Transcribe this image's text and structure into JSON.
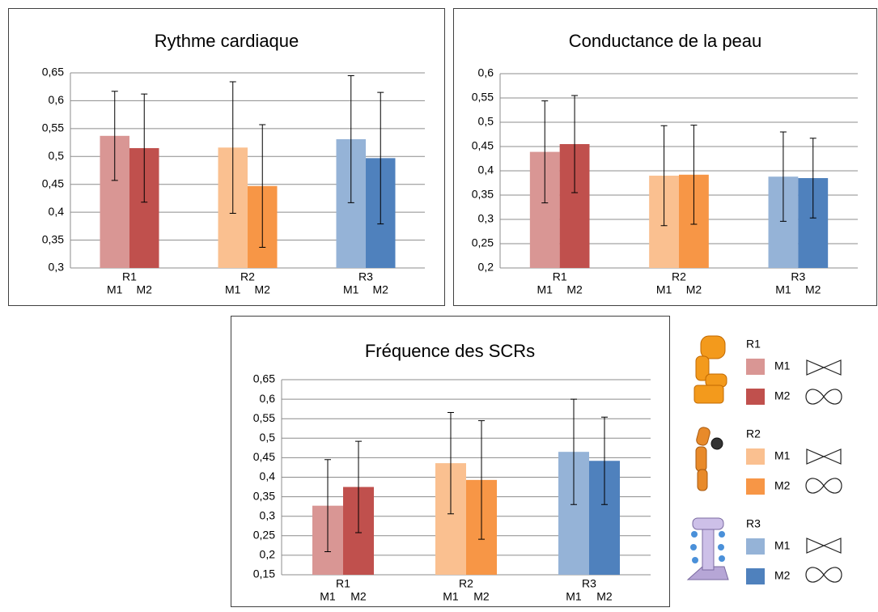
{
  "chart_data": [
    {
      "type": "bar",
      "title": "Rythme cardiaque",
      "categories": [
        "R1",
        "R2",
        "R3"
      ],
      "series": [
        {
          "name": "M1",
          "colors": [
            "#d99694",
            "#fac090",
            "#95b3d7"
          ],
          "values": [
            0.537,
            0.516,
            0.531
          ],
          "errors": [
            0.08,
            0.118,
            0.114
          ]
        },
        {
          "name": "M2",
          "colors": [
            "#c0504d",
            "#f79646",
            "#4f81bd"
          ],
          "values": [
            0.515,
            0.447,
            0.497
          ],
          "errors": [
            0.097,
            0.11,
            0.118
          ]
        }
      ],
      "ylim": [
        0.3,
        0.65
      ],
      "yticks": [
        {
          "value": 0.3,
          "label": "0,3"
        },
        {
          "value": 0.35,
          "label": "0,35"
        },
        {
          "value": 0.4,
          "label": "0,4"
        },
        {
          "value": 0.45,
          "label": "0,45"
        },
        {
          "value": 0.5,
          "label": "0,5"
        },
        {
          "value": 0.55,
          "label": "0,55"
        },
        {
          "value": 0.6,
          "label": "0,6"
        },
        {
          "value": 0.65,
          "label": "0,65"
        }
      ],
      "grid": true
    },
    {
      "type": "bar",
      "title": "Conductance de la peau",
      "categories": [
        "R1",
        "R2",
        "R3"
      ],
      "series": [
        {
          "name": "M1",
          "colors": [
            "#d99694",
            "#fac090",
            "#95b3d7"
          ],
          "values": [
            0.439,
            0.39,
            0.388
          ],
          "errors": [
            0.105,
            0.103,
            0.092
          ]
        },
        {
          "name": "M2",
          "colors": [
            "#c0504d",
            "#f79646",
            "#4f81bd"
          ],
          "values": [
            0.455,
            0.392,
            0.385
          ],
          "errors": [
            0.1,
            0.102,
            0.082
          ]
        }
      ],
      "ylim": [
        0.2,
        0.6
      ],
      "yticks": [
        {
          "value": 0.2,
          "label": "0,2"
        },
        {
          "value": 0.25,
          "label": "0,25"
        },
        {
          "value": 0.3,
          "label": "0,3"
        },
        {
          "value": 0.35,
          "label": "0,35"
        },
        {
          "value": 0.4,
          "label": "0,4"
        },
        {
          "value": 0.45,
          "label": "0,45"
        },
        {
          "value": 0.5,
          "label": "0,5"
        },
        {
          "value": 0.55,
          "label": "0,55"
        },
        {
          "value": 0.6,
          "label": "0,6"
        }
      ],
      "grid": true
    },
    {
      "type": "bar",
      "title": "Fréquence des SCRs",
      "categories": [
        "R1",
        "R2",
        "R3"
      ],
      "series": [
        {
          "name": "M1",
          "colors": [
            "#d99694",
            "#fac090",
            "#95b3d7"
          ],
          "values": [
            0.327,
            0.436,
            0.465
          ],
          "errors": [
            0.118,
            0.13,
            0.135
          ]
        },
        {
          "name": "M2",
          "colors": [
            "#c0504d",
            "#f79646",
            "#4f81bd"
          ],
          "values": [
            0.375,
            0.393,
            0.442
          ],
          "errors": [
            0.117,
            0.152,
            0.112
          ]
        }
      ],
      "ylim": [
        0.15,
        0.65
      ],
      "yticks": [
        {
          "value": 0.15,
          "label": "0,15"
        },
        {
          "value": 0.2,
          "label": "0,2"
        },
        {
          "value": 0.25,
          "label": "0,25"
        },
        {
          "value": 0.3,
          "label": "0,3"
        },
        {
          "value": 0.35,
          "label": "0,35"
        },
        {
          "value": 0.4,
          "label": "0,4"
        },
        {
          "value": 0.45,
          "label": "0,45"
        },
        {
          "value": 0.5,
          "label": "0,5"
        },
        {
          "value": 0.55,
          "label": "0,55"
        },
        {
          "value": 0.6,
          "label": "0,6"
        },
        {
          "value": 0.65,
          "label": "0,65"
        }
      ],
      "grid": true
    }
  ]
}
